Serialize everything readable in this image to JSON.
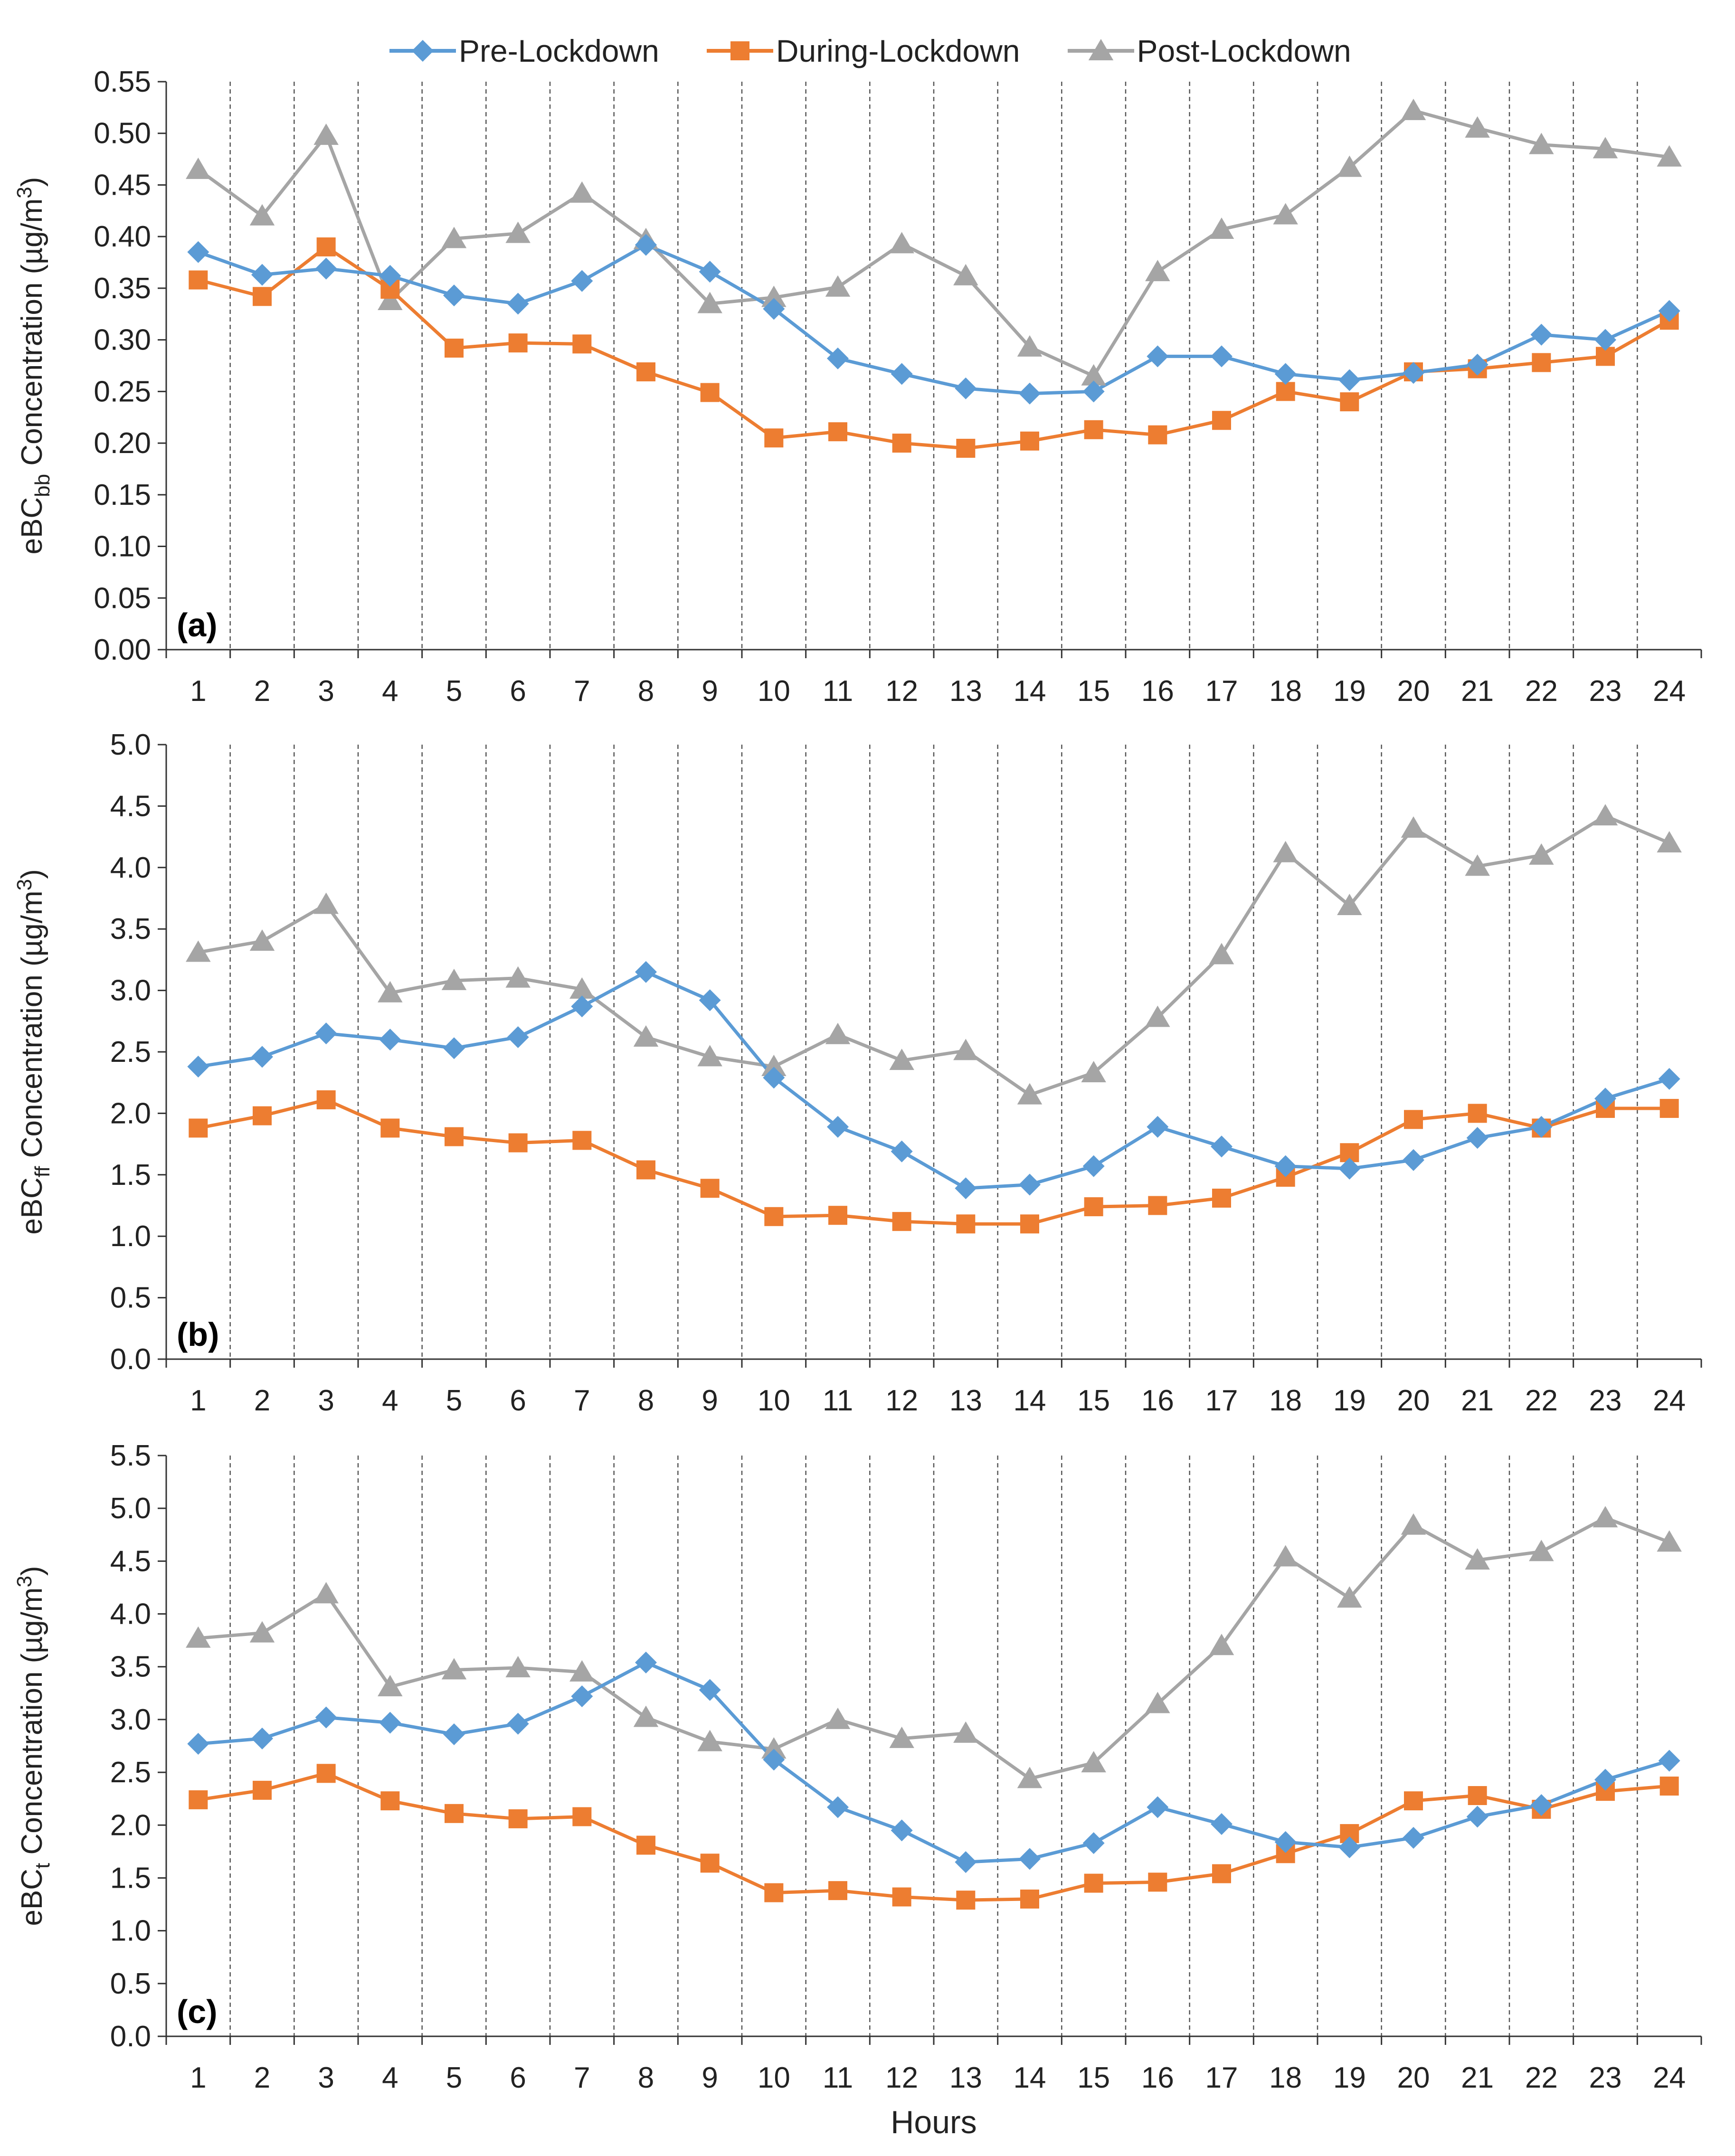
{
  "legend": [
    {
      "name": "Pre-Lockdown",
      "color": "#5B9BD5",
      "marker": "diamond"
    },
    {
      "name": "During-Lockdown",
      "color": "#ED7D31",
      "marker": "square"
    },
    {
      "name": "Post-Lockdown",
      "color": "#A5A5A5",
      "marker": "triangle"
    }
  ],
  "chart_data": [
    {
      "type": "line",
      "panel_label": "(a)",
      "ylabel_parts": [
        "eBC",
        "bb",
        " Concentration (µg/m",
        "3",
        ")"
      ],
      "ylim": [
        0,
        0.55
      ],
      "ystep": 0.05,
      "ydecimals": 2,
      "categories": [
        "1",
        "2",
        "3",
        "4",
        "5",
        "6",
        "7",
        "8",
        "9",
        "10",
        "11",
        "12",
        "13",
        "14",
        "15",
        "16",
        "17",
        "18",
        "19",
        "20",
        "21",
        "22",
        "23",
        "24"
      ],
      "series": [
        {
          "name": "Pre-Lockdown",
          "values": [
            0.385,
            0.363,
            0.369,
            0.362,
            0.343,
            0.335,
            0.357,
            0.392,
            0.366,
            0.33,
            0.282,
            0.267,
            0.253,
            0.248,
            0.25,
            0.284,
            0.284,
            0.267,
            0.261,
            0.268,
            0.276,
            0.305,
            0.3,
            0.328
          ]
        },
        {
          "name": "During-Lockdown",
          "values": [
            0.358,
            0.342,
            0.39,
            0.349,
            0.292,
            0.297,
            0.296,
            0.269,
            0.249,
            0.205,
            0.211,
            0.2,
            0.195,
            0.202,
            0.213,
            0.208,
            0.222,
            0.25,
            0.24,
            0.269,
            0.272,
            0.278,
            0.284,
            0.319
          ]
        },
        {
          "name": "Post-Lockdown",
          "values": [
            0.465,
            0.42,
            0.498,
            0.338,
            0.398,
            0.403,
            0.442,
            0.397,
            0.335,
            0.341,
            0.351,
            0.393,
            0.362,
            0.293,
            0.265,
            0.366,
            0.407,
            0.421,
            0.467,
            0.522,
            0.505,
            0.489,
            0.485,
            0.477
          ]
        }
      ]
    },
    {
      "type": "line",
      "panel_label": "(b)",
      "ylabel_parts": [
        "eBC",
        "ff",
        " Concentration (µg/m",
        "3",
        ")"
      ],
      "ylim": [
        0,
        5.0
      ],
      "ystep": 0.5,
      "ydecimals": 1,
      "categories": [
        "1",
        "2",
        "3",
        "4",
        "5",
        "6",
        "7",
        "8",
        "9",
        "10",
        "11",
        "12",
        "13",
        "14",
        "15",
        "16",
        "17",
        "18",
        "19",
        "20",
        "21",
        "22",
        "23",
        "24"
      ],
      "series": [
        {
          "name": "Pre-Lockdown",
          "values": [
            2.38,
            2.46,
            2.65,
            2.6,
            2.53,
            2.62,
            2.87,
            3.15,
            2.92,
            2.29,
            1.89,
            1.69,
            1.39,
            1.42,
            1.57,
            1.89,
            1.73,
            1.57,
            1.55,
            1.62,
            1.8,
            1.89,
            2.12,
            2.28
          ]
        },
        {
          "name": "During-Lockdown",
          "values": [
            1.88,
            1.98,
            2.11,
            1.88,
            1.81,
            1.76,
            1.78,
            1.54,
            1.39,
            1.16,
            1.17,
            1.12,
            1.1,
            1.1,
            1.24,
            1.25,
            1.31,
            1.48,
            1.68,
            1.95,
            2.0,
            1.88,
            2.04,
            2.04
          ]
        },
        {
          "name": "Post-Lockdown",
          "values": [
            3.31,
            3.4,
            3.7,
            2.98,
            3.08,
            3.1,
            3.01,
            2.62,
            2.46,
            2.38,
            2.64,
            2.43,
            2.51,
            2.15,
            2.33,
            2.78,
            3.29,
            4.12,
            3.69,
            4.32,
            4.01,
            4.1,
            4.42,
            4.2
          ]
        }
      ]
    },
    {
      "type": "line",
      "panel_label": "(c)",
      "ylabel_parts": [
        "eBC",
        "t",
        " Concentration (µg/m",
        "3",
        ")"
      ],
      "xlabel": "Hours",
      "ylim": [
        0,
        5.5
      ],
      "ystep": 0.5,
      "ydecimals": 1,
      "categories": [
        "1",
        "2",
        "3",
        "4",
        "5",
        "6",
        "7",
        "8",
        "9",
        "10",
        "11",
        "12",
        "13",
        "14",
        "15",
        "16",
        "17",
        "18",
        "19",
        "20",
        "21",
        "22",
        "23",
        "24"
      ],
      "series": [
        {
          "name": "Pre-Lockdown",
          "values": [
            2.77,
            2.82,
            3.02,
            2.97,
            2.86,
            2.96,
            3.22,
            3.54,
            3.28,
            2.62,
            2.17,
            1.95,
            1.65,
            1.68,
            1.83,
            2.17,
            2.01,
            1.84,
            1.79,
            1.88,
            2.08,
            2.19,
            2.43,
            2.61
          ]
        },
        {
          "name": "During-Lockdown",
          "values": [
            2.24,
            2.33,
            2.49,
            2.23,
            2.11,
            2.06,
            2.08,
            1.81,
            1.64,
            1.36,
            1.38,
            1.32,
            1.29,
            1.3,
            1.45,
            1.46,
            1.54,
            1.73,
            1.92,
            2.23,
            2.28,
            2.15,
            2.32,
            2.37
          ]
        },
        {
          "name": "Post-Lockdown",
          "values": [
            3.77,
            3.82,
            4.19,
            3.31,
            3.47,
            3.49,
            3.45,
            3.02,
            2.79,
            2.72,
            3.0,
            2.82,
            2.87,
            2.44,
            2.59,
            3.15,
            3.7,
            4.54,
            4.15,
            4.84,
            4.51,
            4.59,
            4.91,
            4.68
          ]
        }
      ]
    }
  ]
}
